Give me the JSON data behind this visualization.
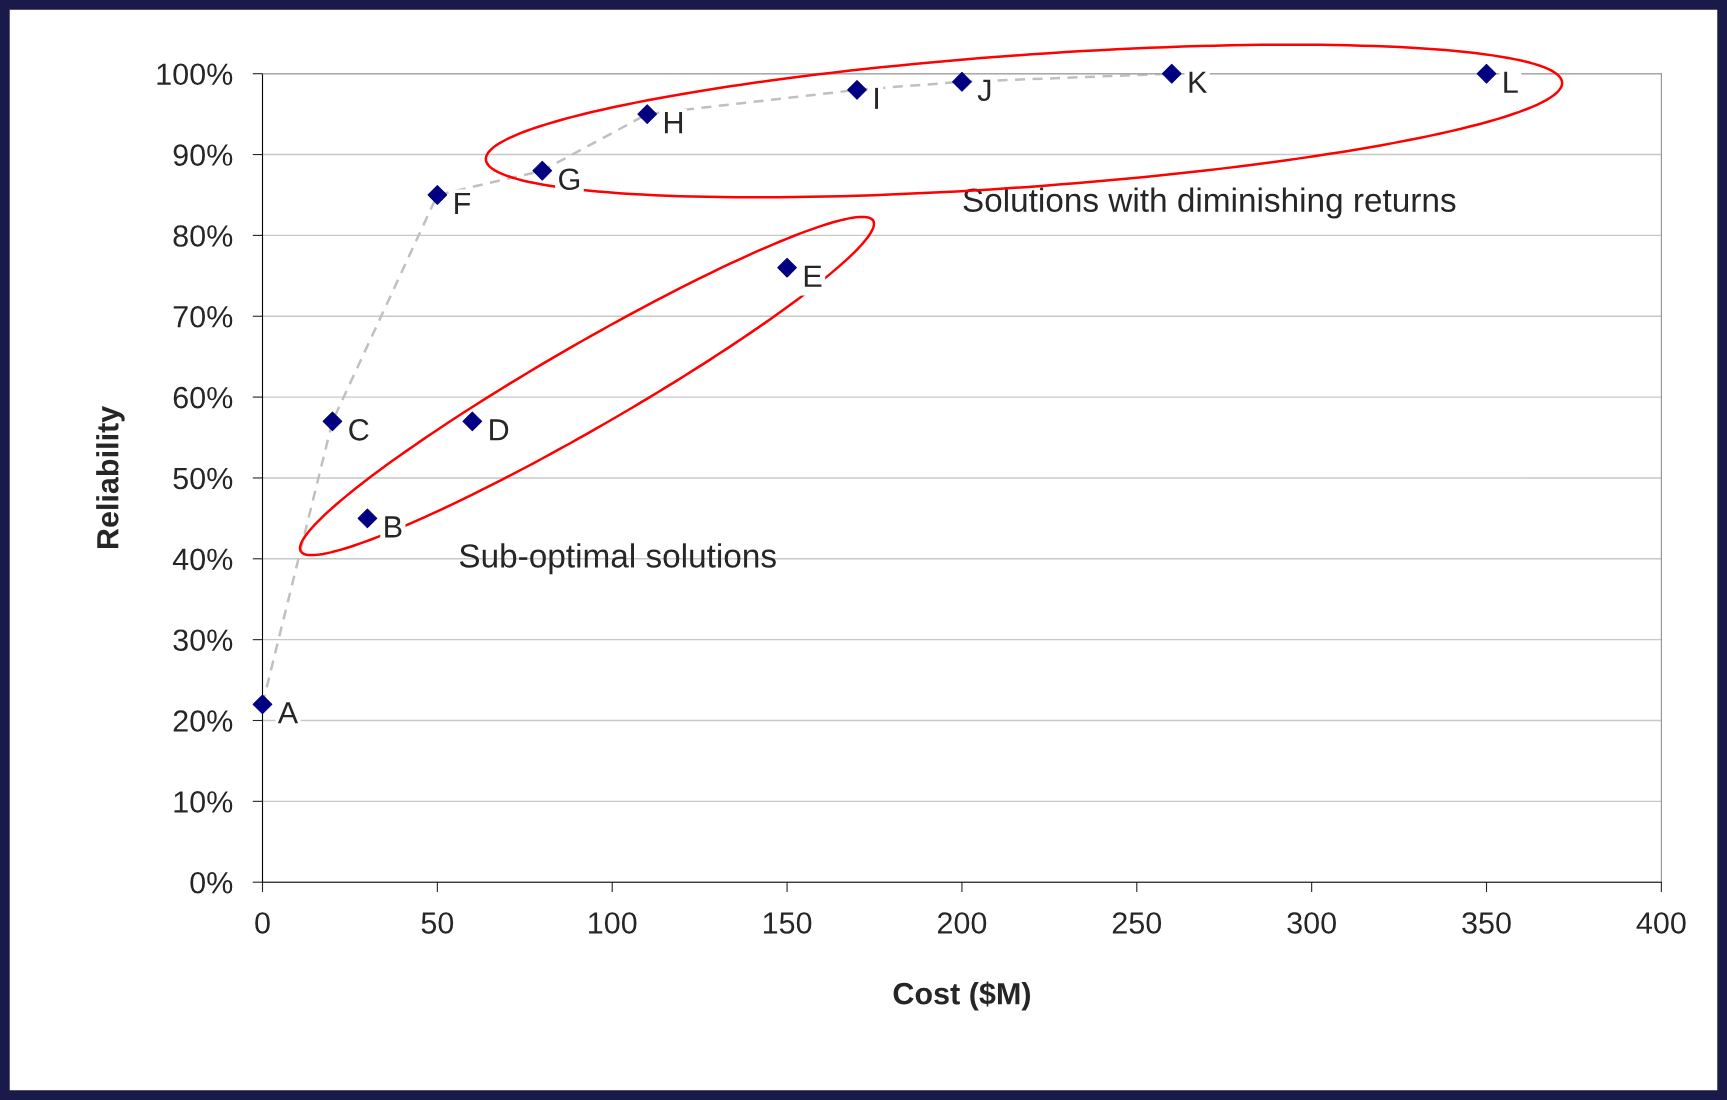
{
  "chart_data": {
    "type": "scatter",
    "xlabel": "Cost ($M)",
    "ylabel": "Reliability",
    "xlim": [
      0,
      400
    ],
    "xticks": [
      0,
      50,
      100,
      150,
      200,
      250,
      300,
      350,
      400
    ],
    "ylim": [
      0,
      100
    ],
    "yticks": [
      {
        "value": 0,
        "label": "0%"
      },
      {
        "value": 10,
        "label": "10%"
      },
      {
        "value": 20,
        "label": "20%"
      },
      {
        "value": 30,
        "label": "30%"
      },
      {
        "value": 40,
        "label": "40%"
      },
      {
        "value": 50,
        "label": "50%"
      },
      {
        "value": 60,
        "label": "60%"
      },
      {
        "value": 70,
        "label": "70%"
      },
      {
        "value": 80,
        "label": "80%"
      },
      {
        "value": 90,
        "label": "90%"
      },
      {
        "value": 100,
        "label": "100%"
      }
    ],
    "grid": "y",
    "legend": false,
    "series": [
      {
        "type": "line",
        "color": "#c0c0c0",
        "line_style": "dashed",
        "marker": "none",
        "x": [
          0,
          20,
          50,
          80,
          110,
          170,
          200,
          260
        ],
        "values": [
          22,
          57,
          85,
          88,
          95,
          98,
          99,
          100
        ]
      },
      {
        "color": "#000080",
        "marker": "diamond",
        "x": [
          0,
          30,
          20,
          60,
          150,
          50,
          80,
          110,
          170,
          200,
          260,
          350
        ],
        "values": [
          22,
          45,
          57,
          57,
          76,
          85,
          88,
          95,
          98,
          99,
          100,
          100
        ]
      }
    ],
    "annotations": [
      {
        "text": "A",
        "x": 0,
        "y": 22
      },
      {
        "text": "B",
        "x": 30,
        "y": 45
      },
      {
        "text": "C",
        "x": 20,
        "y": 57
      },
      {
        "text": "D",
        "x": 60,
        "y": 57
      },
      {
        "text": "E",
        "x": 150,
        "y": 76
      },
      {
        "text": "F",
        "x": 50,
        "y": 85
      },
      {
        "text": "G",
        "x": 80,
        "y": 88
      },
      {
        "text": "H",
        "x": 110,
        "y": 95
      },
      {
        "text": "I",
        "x": 170,
        "y": 98
      },
      {
        "text": "J",
        "x": 200,
        "y": 99
      },
      {
        "text": "K",
        "x": 260,
        "y": 100
      },
      {
        "text": "L",
        "x": 350,
        "y": 100
      },
      "Sub-optimal solutions",
      "Solutions with diminishing returns"
    ]
  }
}
